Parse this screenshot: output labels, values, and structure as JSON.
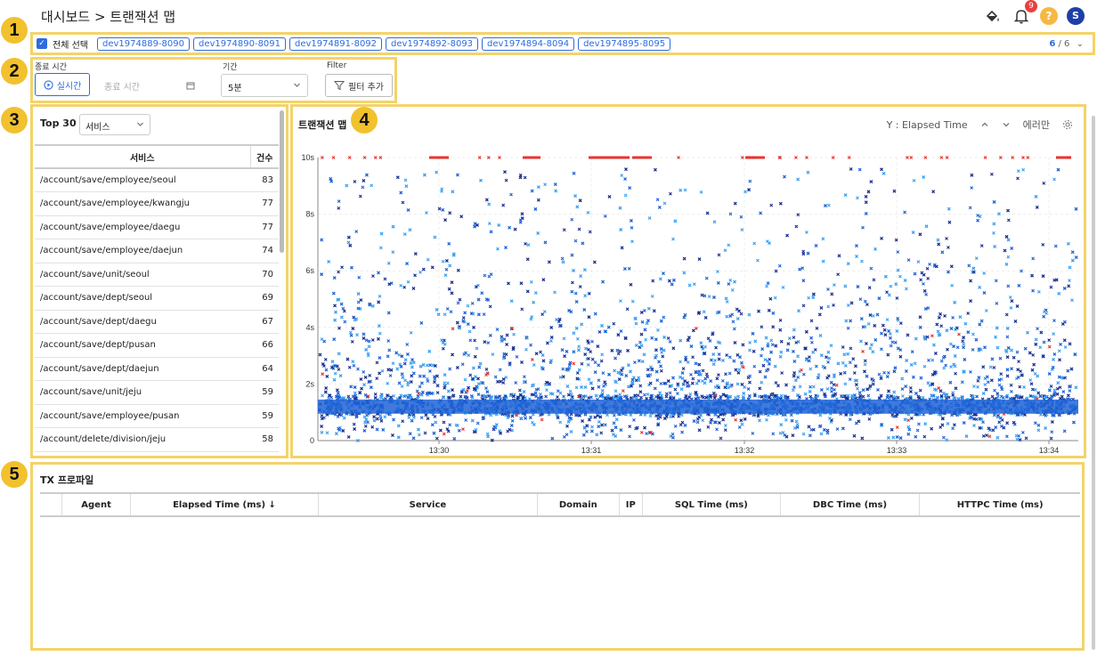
{
  "header": {
    "breadcrumb": "대시보드 > 트랜잭션 맵",
    "notification_count": "9",
    "help_label": "?",
    "avatar_initial": "S"
  },
  "markers": [
    "1",
    "2",
    "3",
    "4",
    "5"
  ],
  "agents": {
    "select_all_label": "전체 선택",
    "chips": [
      "dev1974889-8090",
      "dev1974890-8091",
      "dev1974891-8092",
      "dev1974892-8093",
      "dev1974894-8094",
      "dev1974895-8095"
    ],
    "selected": "6",
    "total": "/ 6"
  },
  "filters": {
    "end_time_label": "종료 시간",
    "realtime_label": "실시간",
    "end_time_placeholder": "종료 시간",
    "period_label": "기간",
    "period_value": "5분",
    "filter_label": "Filter",
    "add_filter_label": "필터 추가"
  },
  "toplist": {
    "title": "Top 30",
    "select_value": "서비스",
    "col_service": "서비스",
    "col_count": "건수",
    "rows": [
      {
        "service": "/account/save/employee/seoul",
        "count": "83"
      },
      {
        "service": "/account/save/employee/kwangju",
        "count": "77"
      },
      {
        "service": "/account/save/employee/daegu",
        "count": "77"
      },
      {
        "service": "/account/save/employee/daejun",
        "count": "74"
      },
      {
        "service": "/account/save/unit/seoul",
        "count": "70"
      },
      {
        "service": "/account/save/dept/seoul",
        "count": "69"
      },
      {
        "service": "/account/save/dept/daegu",
        "count": "67"
      },
      {
        "service": "/account/save/dept/pusan",
        "count": "66"
      },
      {
        "service": "/account/save/dept/daejun",
        "count": "64"
      },
      {
        "service": "/account/save/unit/jeju",
        "count": "59"
      },
      {
        "service": "/account/save/employee/pusan",
        "count": "59"
      },
      {
        "service": "/account/delete/division/jeju",
        "count": "58"
      }
    ]
  },
  "txmap": {
    "title": "트랜잭션 맵",
    "y_selector": "Y : Elapsed Time",
    "error_only": "에러만"
  },
  "chart_data": {
    "type": "scatter",
    "title": "트랜잭션 맵",
    "xlabel": "",
    "ylabel": "",
    "x_ticks": [
      "13:30",
      "13:31",
      "13:32",
      "13:33",
      "13:34"
    ],
    "y_ticks": [
      "0",
      "2s",
      "4s",
      "6s",
      "8s",
      "10s"
    ],
    "ylim": [
      0,
      10
    ],
    "grid": true,
    "series": [],
    "colors": {
      "normal_light": "#3aa0f0",
      "normal_mid": "#1f63d6",
      "normal_dark": "#1a2f8f",
      "error": "#e8332f"
    }
  },
  "profile": {
    "title": "TX 프로파일",
    "columns": [
      "",
      "Agent",
      "Elapsed Time (ms) ↓",
      "Service",
      "Domain",
      "IP",
      "SQL Time (ms)",
      "DBC Time (ms)",
      "HTTPC Time (ms)"
    ]
  }
}
